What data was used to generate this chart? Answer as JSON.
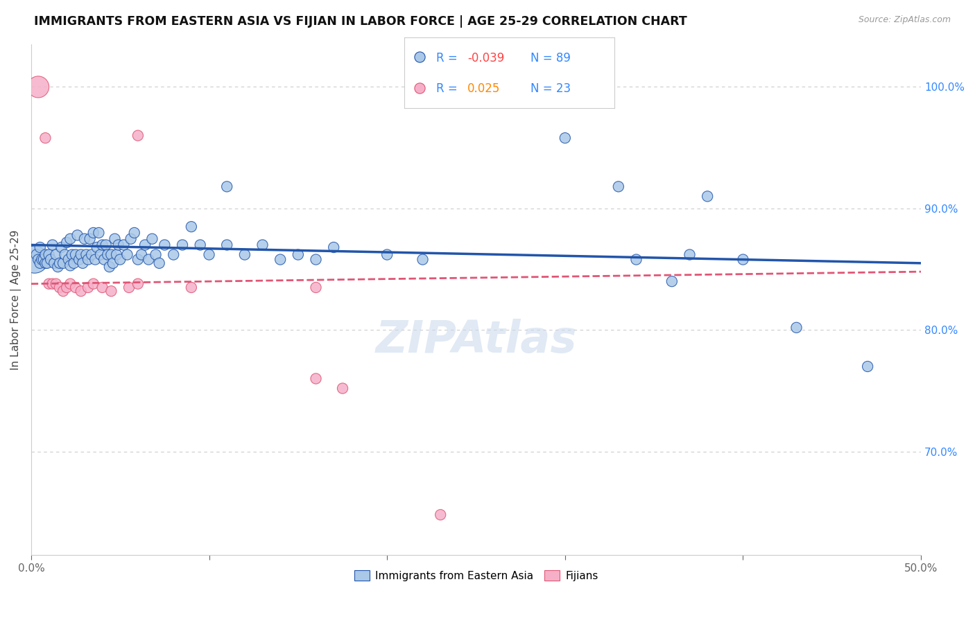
{
  "title": "IMMIGRANTS FROM EASTERN ASIA VS FIJIAN IN LABOR FORCE | AGE 25-29 CORRELATION CHART",
  "source": "Source: ZipAtlas.com",
  "ylabel": "In Labor Force | Age 25-29",
  "xlim": [
    0.0,
    0.5
  ],
  "ylim": [
    0.615,
    1.035
  ],
  "legend_r_blue": "-0.039",
  "legend_n_blue": "89",
  "legend_r_pink": "0.025",
  "legend_n_pink": "23",
  "blue_color": "#aac8e8",
  "blue_line_color": "#2255aa",
  "pink_color": "#f5b0c8",
  "pink_line_color": "#e05575",
  "blue_scatter": [
    [
      0.002,
      0.858
    ],
    [
      0.003,
      0.862
    ],
    [
      0.004,
      0.858
    ],
    [
      0.005,
      0.868
    ],
    [
      0.005,
      0.855
    ],
    [
      0.006,
      0.858
    ],
    [
      0.007,
      0.858
    ],
    [
      0.008,
      0.855
    ],
    [
      0.008,
      0.862
    ],
    [
      0.009,
      0.855
    ],
    [
      0.01,
      0.862
    ],
    [
      0.011,
      0.858
    ],
    [
      0.012,
      0.87
    ],
    [
      0.013,
      0.855
    ],
    [
      0.014,
      0.862
    ],
    [
      0.015,
      0.852
    ],
    [
      0.016,
      0.855
    ],
    [
      0.017,
      0.868
    ],
    [
      0.018,
      0.855
    ],
    [
      0.019,
      0.862
    ],
    [
      0.02,
      0.872
    ],
    [
      0.021,
      0.858
    ],
    [
      0.022,
      0.875
    ],
    [
      0.022,
      0.853
    ],
    [
      0.023,
      0.862
    ],
    [
      0.024,
      0.855
    ],
    [
      0.025,
      0.862
    ],
    [
      0.026,
      0.878
    ],
    [
      0.027,
      0.858
    ],
    [
      0.028,
      0.862
    ],
    [
      0.029,
      0.855
    ],
    [
      0.03,
      0.875
    ],
    [
      0.031,
      0.862
    ],
    [
      0.032,
      0.858
    ],
    [
      0.033,
      0.875
    ],
    [
      0.034,
      0.862
    ],
    [
      0.035,
      0.88
    ],
    [
      0.036,
      0.858
    ],
    [
      0.037,
      0.868
    ],
    [
      0.038,
      0.88
    ],
    [
      0.039,
      0.862
    ],
    [
      0.04,
      0.87
    ],
    [
      0.041,
      0.858
    ],
    [
      0.042,
      0.87
    ],
    [
      0.043,
      0.862
    ],
    [
      0.044,
      0.852
    ],
    [
      0.045,
      0.862
    ],
    [
      0.046,
      0.855
    ],
    [
      0.047,
      0.875
    ],
    [
      0.048,
      0.862
    ],
    [
      0.049,
      0.87
    ],
    [
      0.05,
      0.858
    ],
    [
      0.052,
      0.87
    ],
    [
      0.054,
      0.862
    ],
    [
      0.056,
      0.875
    ],
    [
      0.058,
      0.88
    ],
    [
      0.06,
      0.858
    ],
    [
      0.062,
      0.862
    ],
    [
      0.064,
      0.87
    ],
    [
      0.066,
      0.858
    ],
    [
      0.068,
      0.875
    ],
    [
      0.07,
      0.862
    ],
    [
      0.072,
      0.855
    ],
    [
      0.075,
      0.87
    ],
    [
      0.08,
      0.862
    ],
    [
      0.085,
      0.87
    ],
    [
      0.09,
      0.885
    ],
    [
      0.095,
      0.87
    ],
    [
      0.1,
      0.862
    ],
    [
      0.11,
      0.87
    ],
    [
      0.12,
      0.862
    ],
    [
      0.13,
      0.87
    ],
    [
      0.14,
      0.858
    ],
    [
      0.15,
      0.862
    ],
    [
      0.16,
      0.858
    ],
    [
      0.17,
      0.868
    ],
    [
      0.2,
      0.862
    ],
    [
      0.22,
      0.858
    ],
    [
      0.11,
      0.918
    ],
    [
      0.3,
      0.958
    ],
    [
      0.33,
      0.918
    ],
    [
      0.38,
      0.91
    ],
    [
      0.37,
      0.862
    ],
    [
      0.4,
      0.858
    ],
    [
      0.34,
      0.858
    ],
    [
      0.36,
      0.84
    ],
    [
      0.43,
      0.802
    ],
    [
      0.47,
      0.77
    ]
  ],
  "pink_scatter": [
    [
      0.004,
      1.0
    ],
    [
      0.01,
      0.838
    ],
    [
      0.012,
      0.838
    ],
    [
      0.014,
      0.838
    ],
    [
      0.016,
      0.835
    ],
    [
      0.018,
      0.832
    ],
    [
      0.02,
      0.835
    ],
    [
      0.022,
      0.838
    ],
    [
      0.025,
      0.835
    ],
    [
      0.028,
      0.832
    ],
    [
      0.008,
      0.958
    ],
    [
      0.06,
      0.96
    ],
    [
      0.032,
      0.835
    ],
    [
      0.035,
      0.838
    ],
    [
      0.04,
      0.835
    ],
    [
      0.045,
      0.832
    ],
    [
      0.055,
      0.835
    ],
    [
      0.06,
      0.838
    ],
    [
      0.09,
      0.835
    ],
    [
      0.16,
      0.76
    ],
    [
      0.175,
      0.752
    ],
    [
      0.23,
      0.648
    ],
    [
      0.16,
      0.835
    ]
  ],
  "blue_trend": [
    0.0,
    0.5,
    0.87,
    0.855
  ],
  "pink_trend": [
    0.0,
    0.5,
    0.838,
    0.848
  ]
}
